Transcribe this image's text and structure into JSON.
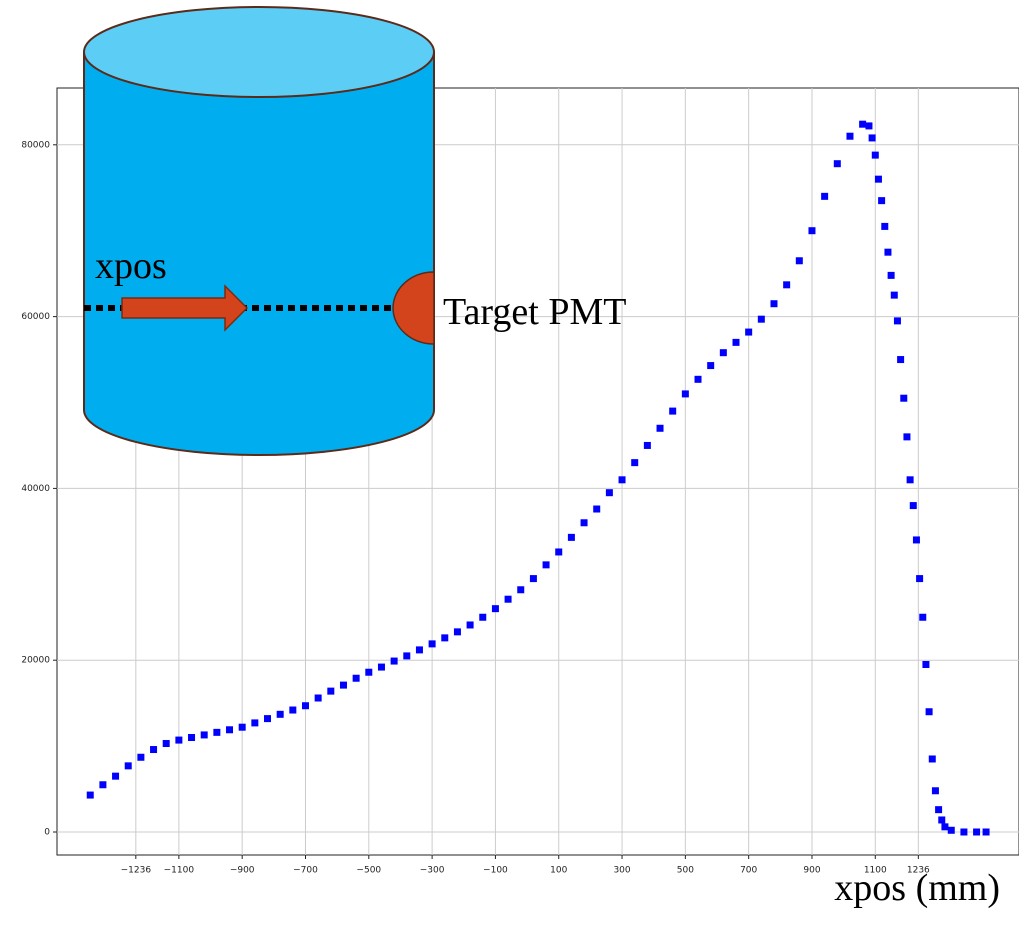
{
  "chart_data": {
    "type": "scatter",
    "x_label": "xpos (mm)",
    "annotations": [
      "xpos",
      "Target PMT"
    ],
    "xlim": [
      -1485,
      1554
    ],
    "ylim": [
      -2678,
      86613
    ],
    "xticks": [
      {
        "value": -1236,
        "label": "−1236"
      },
      {
        "value": -1100,
        "label": "−1100"
      },
      {
        "value": -900,
        "label": "−900"
      },
      {
        "value": -700,
        "label": "−700"
      },
      {
        "value": -500,
        "label": "−500"
      },
      {
        "value": -300,
        "label": "−300"
      },
      {
        "value": -100,
        "label": "−100"
      },
      100,
      300,
      500,
      700,
      900,
      1100,
      1236
    ],
    "yticks": [
      0,
      20000,
      40000,
      60000,
      80000
    ],
    "grid": true,
    "series": [
      {
        "color": "#0000ff",
        "x": [
          -1380,
          -1340,
          -1300,
          -1260,
          -1220,
          -1180,
          -1140,
          -1100,
          -1060,
          -1020,
          -980,
          -940,
          -900,
          -860,
          -820,
          -780,
          -740,
          -700,
          -660,
          -620,
          -580,
          -540,
          -500,
          -460,
          -420,
          -380,
          -340,
          -300,
          -260,
          -220,
          -180,
          -140,
          -100,
          -60,
          -20,
          20,
          60,
          100,
          140,
          180,
          220,
          260,
          300,
          340,
          380,
          420,
          460,
          500,
          540,
          580,
          620,
          660,
          700,
          740,
          780,
          820,
          860,
          900,
          940,
          980,
          1020,
          1060,
          1080,
          1090,
          1100,
          1110,
          1120,
          1130,
          1140,
          1150,
          1160,
          1170,
          1180,
          1190,
          1200,
          1210,
          1220,
          1230,
          1240,
          1250,
          1260,
          1270,
          1280,
          1290,
          1300,
          1310,
          1320,
          1340,
          1380,
          1420,
          1450
        ],
        "values": [
          4300,
          5500,
          6500,
          7700,
          8700,
          9600,
          10300,
          10700,
          11000,
          11300,
          11600,
          11900,
          12200,
          12700,
          13200,
          13700,
          14200,
          14700,
          15600,
          16400,
          17100,
          17900,
          18600,
          19200,
          19900,
          20500,
          21200,
          21900,
          22600,
          23300,
          24100,
          25000,
          26000,
          27100,
          28200,
          29500,
          31100,
          32600,
          34300,
          36000,
          37600,
          39500,
          41000,
          43000,
          45000,
          47000,
          49000,
          51000,
          52700,
          54300,
          55800,
          57000,
          58200,
          59700,
          61500,
          63700,
          66500,
          70000,
          74000,
          77800,
          81000,
          82400,
          82200,
          80800,
          78800,
          76000,
          73500,
          70500,
          67500,
          64800,
          62500,
          59500,
          55000,
          50500,
          46000,
          41000,
          38000,
          34000,
          29500,
          25000,
          19500,
          14000,
          8500,
          4800,
          2600,
          1400,
          600,
          200,
          0,
          0,
          0
        ]
      }
    ]
  }
}
